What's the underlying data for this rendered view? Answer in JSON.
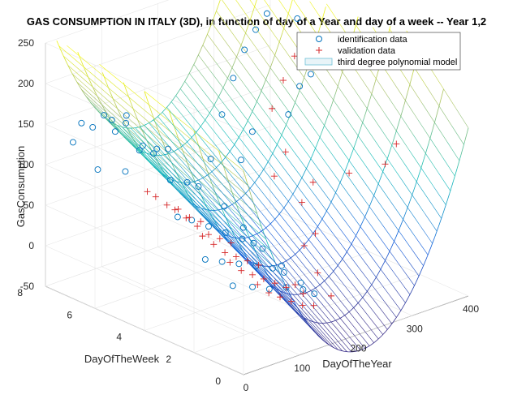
{
  "chart_data": {
    "type": "scatter",
    "title": "GAS CONSUMPTION IN ITALY (3D), in function of day of a Year and day of a week -- Year 1,2",
    "xlabel": "DayOfTheYear",
    "ylabel": "DayOfTheWeek",
    "zlabel": "GasConsumption",
    "x_ticks": [
      "0",
      "100",
      "200",
      "300",
      "400"
    ],
    "y_ticks": [
      "0",
      "2",
      "4",
      "6",
      "8"
    ],
    "z_ticks": [
      "-50",
      "0",
      "50",
      "100",
      "150",
      "200",
      "250"
    ],
    "xlim": [
      0,
      400
    ],
    "ylim": [
      0,
      8
    ],
    "zlim": [
      -50,
      250
    ],
    "grid": true,
    "legend_position": "top-right",
    "legend": [
      {
        "label": "identification data",
        "marker": "circle",
        "color": "#0072bd"
      },
      {
        "label": "validation data",
        "marker": "plus",
        "color": "#d62728"
      },
      {
        "label": "third degree polynomial model",
        "marker": "surface",
        "color": "#6fc2d8"
      }
    ],
    "series": [
      {
        "name": "identification data",
        "marker": "circle",
        "color": "#0072bd",
        "points": [
          [
            5,
            7,
            140
          ],
          [
            20,
            7,
            160
          ],
          [
            40,
            7,
            150
          ],
          [
            60,
            7,
            160
          ],
          [
            80,
            7,
            135
          ],
          [
            100,
            7,
            150
          ],
          [
            5,
            6,
            120
          ],
          [
            30,
            6,
            175
          ],
          [
            55,
            6,
            165
          ],
          [
            85,
            6,
            130
          ],
          [
            110,
            6,
            120
          ],
          [
            130,
            6,
            115
          ],
          [
            10,
            5,
            130
          ],
          [
            35,
            5,
            150
          ],
          [
            60,
            5,
            140
          ],
          [
            90,
            5,
            100
          ],
          [
            120,
            5,
            90
          ],
          [
            140,
            5,
            80
          ],
          [
            15,
            3,
            100
          ],
          [
            40,
            3,
            90
          ],
          [
            70,
            3,
            75
          ],
          [
            100,
            3,
            60
          ],
          [
            130,
            3,
            45
          ],
          [
            150,
            3,
            35
          ],
          [
            20,
            2,
            60
          ],
          [
            50,
            2,
            50
          ],
          [
            80,
            2,
            40
          ],
          [
            110,
            2,
            30
          ],
          [
            140,
            2,
            20
          ],
          [
            160,
            2,
            10
          ],
          [
            25,
            1,
            40
          ],
          [
            60,
            1,
            30
          ],
          [
            90,
            1,
            20
          ],
          [
            120,
            1,
            15
          ],
          [
            150,
            1,
            5
          ],
          [
            170,
            1,
            -5
          ],
          [
            190,
            2,
            -10
          ],
          [
            200,
            3,
            -5
          ],
          [
            210,
            4,
            0
          ],
          [
            220,
            5,
            10
          ],
          [
            230,
            6,
            20
          ],
          [
            250,
            7,
            60
          ],
          [
            270,
            7,
            110
          ],
          [
            290,
            7,
            150
          ],
          [
            310,
            7,
            180
          ],
          [
            330,
            7,
            200
          ],
          [
            350,
            7,
            215
          ],
          [
            360,
            6,
            220
          ],
          [
            260,
            6,
            70
          ],
          [
            280,
            6,
            100
          ],
          [
            300,
            5,
            130
          ],
          [
            320,
            5,
            160
          ],
          [
            340,
            5,
            170
          ],
          [
            355,
            4,
            190
          ]
        ]
      },
      {
        "name": "validation data",
        "marker": "plus",
        "color": "#d62728",
        "points": [
          [
            5,
            4,
            120
          ],
          [
            20,
            4,
            110
          ],
          [
            40,
            4,
            95
          ],
          [
            60,
            4,
            85
          ],
          [
            80,
            4,
            70
          ],
          [
            100,
            4,
            60
          ],
          [
            10,
            3,
            110
          ],
          [
            30,
            3,
            95
          ],
          [
            50,
            3,
            80
          ],
          [
            70,
            3,
            65
          ],
          [
            90,
            3,
            55
          ],
          [
            110,
            3,
            45
          ],
          [
            15,
            2,
            90
          ],
          [
            35,
            2,
            75
          ],
          [
            55,
            2,
            60
          ],
          [
            75,
            2,
            50
          ],
          [
            95,
            2,
            40
          ],
          [
            115,
            2,
            30
          ],
          [
            20,
            1,
            70
          ],
          [
            40,
            1,
            55
          ],
          [
            60,
            1,
            45
          ],
          [
            80,
            1,
            35
          ],
          [
            100,
            1,
            25
          ],
          [
            120,
            1,
            15
          ],
          [
            25,
            0,
            55
          ],
          [
            45,
            0,
            40
          ],
          [
            65,
            0,
            30
          ],
          [
            85,
            0,
            20
          ],
          [
            105,
            0,
            10
          ],
          [
            125,
            0,
            5
          ],
          [
            150,
            1,
            0
          ],
          [
            180,
            2,
            -10
          ],
          [
            200,
            1,
            -15
          ],
          [
            220,
            2,
            -5
          ],
          [
            240,
            3,
            10
          ],
          [
            260,
            3,
            20
          ],
          [
            280,
            4,
            40
          ],
          [
            300,
            4,
            60
          ],
          [
            320,
            3,
            80
          ],
          [
            340,
            2,
            100
          ],
          [
            360,
            2,
            120
          ],
          [
            275,
            5,
            60
          ],
          [
            295,
            5,
            85
          ],
          [
            315,
            6,
            120
          ],
          [
            335,
            6,
            150
          ],
          [
            355,
            6,
            175
          ]
        ]
      }
    ]
  }
}
